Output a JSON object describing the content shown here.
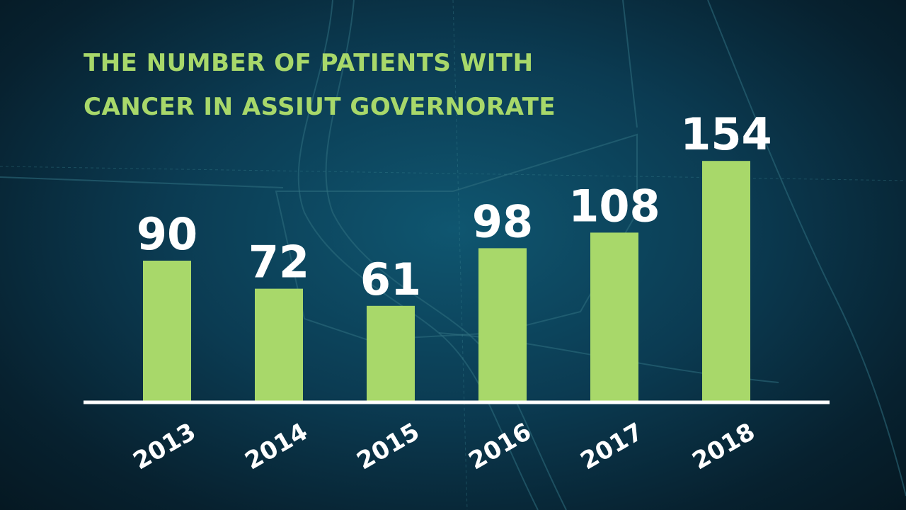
{
  "chart_data": {
    "type": "bar",
    "title_lines": [
      "THE NUMBER OF PATIENTS WITH",
      "CANCER IN ASSIUT GOVERNORATE"
    ],
    "categories": [
      "2013",
      "2014",
      "2015",
      "2016",
      "2017",
      "2018"
    ],
    "values": [
      90,
      72,
      61,
      98,
      108,
      154
    ],
    "ylim": [
      0,
      160
    ],
    "grid": false,
    "legend": "none",
    "data_labels": true,
    "xtick_rotation": -30
  },
  "colors": {
    "bar": "#a8d86a",
    "title": "#a8d86a",
    "labels": "#ffffff",
    "baseline": "#ffffff"
  },
  "background": {
    "type": "map",
    "description_icon": "map-background"
  }
}
